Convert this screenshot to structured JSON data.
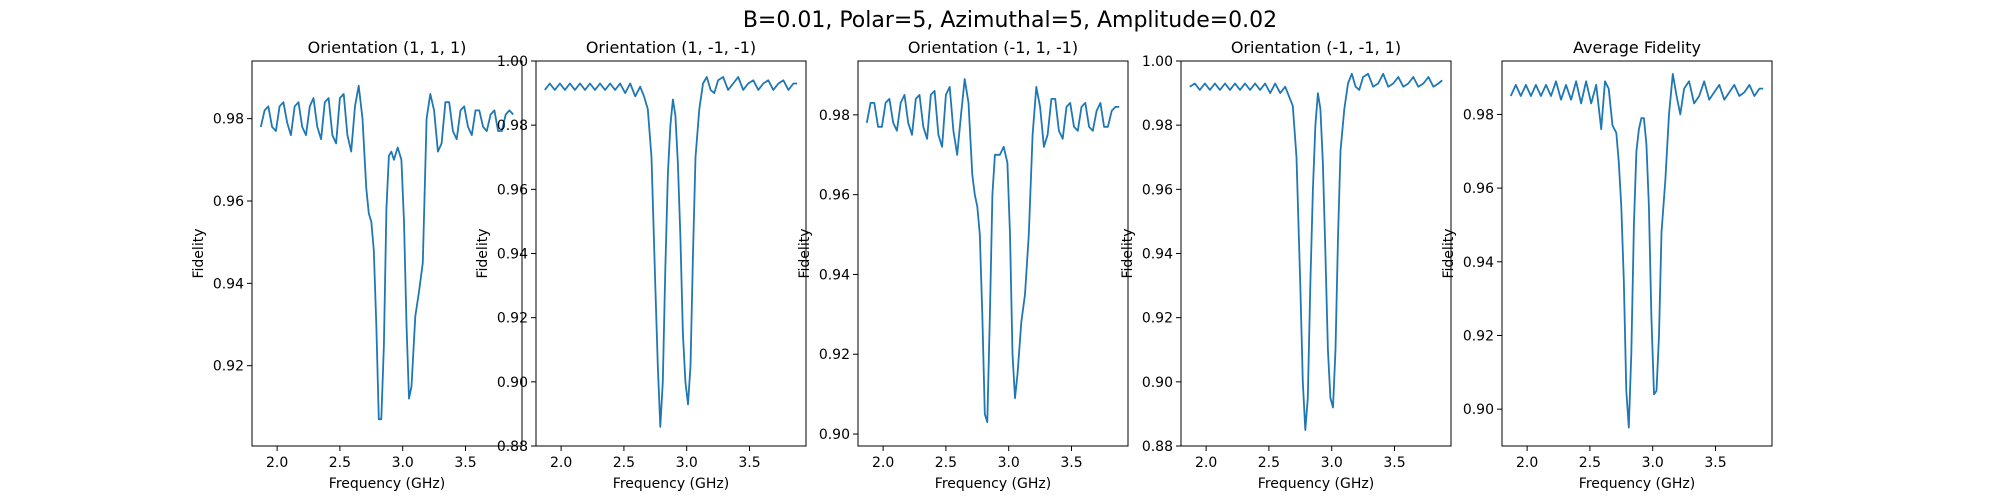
{
  "figure": {
    "title": "B=0.01, Polar=5, Azimuthal=5, Amplitude=0.02"
  },
  "colors": {
    "line": "#1f77b4",
    "axes": "#000000",
    "background": "#ffffff"
  },
  "chart_data": [
    {
      "type": "line",
      "title": "Orientation (1, 1, 1)",
      "xlabel": "Frequency (GHz)",
      "ylabel": "Fidelity",
      "xlim": [
        1.8,
        3.95
      ],
      "ylim": [
        0.9005,
        0.994
      ],
      "xticks": [
        2.0,
        2.5,
        3.0,
        3.5
      ],
      "xtick_labels": [
        "2.0",
        "2.5",
        "3.0",
        "3.5"
      ],
      "yticks": [
        0.92,
        0.94,
        0.96,
        0.98
      ],
      "ytick_labels": [
        "0.92",
        "0.94",
        "0.96",
        "0.98"
      ],
      "grid": false,
      "series": [
        {
          "x": [
            1.87,
            1.9,
            1.93,
            1.96,
            1.99,
            2.02,
            2.05,
            2.08,
            2.11,
            2.14,
            2.17,
            2.2,
            2.23,
            2.26,
            2.29,
            2.32,
            2.35,
            2.38,
            2.41,
            2.44,
            2.47,
            2.5,
            2.53,
            2.56,
            2.59,
            2.62,
            2.65,
            2.68,
            2.71,
            2.73,
            2.75,
            2.77,
            2.79,
            2.81,
            2.83,
            2.85,
            2.87,
            2.89,
            2.91,
            2.93,
            2.96,
            2.99,
            3.01,
            3.03,
            3.05,
            3.07,
            3.1,
            3.13,
            3.16,
            3.19,
            3.22,
            3.25,
            3.28,
            3.31,
            3.34,
            3.37,
            3.4,
            3.43,
            3.46,
            3.49,
            3.52,
            3.55,
            3.58,
            3.61,
            3.64,
            3.67,
            3.7,
            3.73,
            3.76,
            3.79,
            3.82,
            3.85,
            3.88
          ],
          "y": [
            0.978,
            0.982,
            0.983,
            0.978,
            0.977,
            0.983,
            0.984,
            0.979,
            0.976,
            0.983,
            0.984,
            0.978,
            0.976,
            0.983,
            0.985,
            0.978,
            0.975,
            0.984,
            0.985,
            0.976,
            0.974,
            0.985,
            0.986,
            0.976,
            0.972,
            0.983,
            0.988,
            0.98,
            0.963,
            0.957,
            0.955,
            0.948,
            0.93,
            0.907,
            0.907,
            0.925,
            0.958,
            0.971,
            0.972,
            0.97,
            0.973,
            0.97,
            0.955,
            0.93,
            0.912,
            0.915,
            0.932,
            0.938,
            0.945,
            0.98,
            0.986,
            0.982,
            0.972,
            0.974,
            0.984,
            0.984,
            0.977,
            0.975,
            0.982,
            0.983,
            0.978,
            0.976,
            0.982,
            0.982,
            0.978,
            0.977,
            0.981,
            0.982,
            0.977,
            0.977,
            0.981,
            0.982,
            0.981
          ]
        }
      ]
    },
    {
      "type": "line",
      "title": "Orientation (1, -1, -1)",
      "xlabel": "Frequency (GHz)",
      "ylabel": "Fidelity",
      "xlim": [
        1.8,
        3.95
      ],
      "ylim": [
        0.88,
        1.0
      ],
      "xticks": [
        2.0,
        2.5,
        3.0,
        3.5
      ],
      "xtick_labels": [
        "2.0",
        "2.5",
        "3.0",
        "3.5"
      ],
      "yticks": [
        0.88,
        0.9,
        0.92,
        0.94,
        0.96,
        0.98,
        1.0
      ],
      "ytick_labels": [
        "0.88",
        "0.90",
        "0.92",
        "0.94",
        "0.96",
        "0.98",
        "1.00"
      ],
      "grid": false,
      "series": [
        {
          "x": [
            1.87,
            1.91,
            1.95,
            1.99,
            2.03,
            2.07,
            2.11,
            2.15,
            2.19,
            2.23,
            2.27,
            2.31,
            2.35,
            2.39,
            2.43,
            2.47,
            2.51,
            2.55,
            2.59,
            2.63,
            2.66,
            2.69,
            2.72,
            2.75,
            2.77,
            2.79,
            2.81,
            2.83,
            2.85,
            2.87,
            2.89,
            2.91,
            2.93,
            2.95,
            2.97,
            2.99,
            3.01,
            3.03,
            3.05,
            3.07,
            3.1,
            3.13,
            3.16,
            3.19,
            3.22,
            3.25,
            3.29,
            3.33,
            3.37,
            3.41,
            3.45,
            3.49,
            3.53,
            3.57,
            3.61,
            3.65,
            3.69,
            3.73,
            3.77,
            3.81,
            3.85,
            3.88
          ],
          "y": [
            0.991,
            0.993,
            0.991,
            0.993,
            0.991,
            0.993,
            0.991,
            0.993,
            0.991,
            0.993,
            0.991,
            0.993,
            0.991,
            0.993,
            0.991,
            0.993,
            0.99,
            0.993,
            0.989,
            0.992,
            0.989,
            0.985,
            0.97,
            0.93,
            0.905,
            0.886,
            0.9,
            0.935,
            0.965,
            0.98,
            0.988,
            0.983,
            0.968,
            0.945,
            0.915,
            0.9,
            0.893,
            0.905,
            0.94,
            0.97,
            0.985,
            0.993,
            0.995,
            0.991,
            0.99,
            0.994,
            0.995,
            0.991,
            0.993,
            0.995,
            0.991,
            0.993,
            0.994,
            0.991,
            0.993,
            0.994,
            0.991,
            0.993,
            0.994,
            0.991,
            0.993,
            0.993
          ]
        }
      ]
    },
    {
      "type": "line",
      "title": "Orientation (-1, 1, -1)",
      "xlabel": "Frequency (GHz)",
      "ylabel": "Fidelity",
      "xlim": [
        1.8,
        3.95
      ],
      "ylim": [
        0.897,
        0.9935
      ],
      "xticks": [
        2.0,
        2.5,
        3.0,
        3.5
      ],
      "xtick_labels": [
        "2.0",
        "2.5",
        "3.0",
        "3.5"
      ],
      "yticks": [
        0.9,
        0.92,
        0.94,
        0.96,
        0.98
      ],
      "ytick_labels": [
        "0.90",
        "0.92",
        "0.94",
        "0.96",
        "0.98"
      ],
      "grid": false,
      "series": [
        {
          "x": [
            1.87,
            1.9,
            1.93,
            1.96,
            1.99,
            2.02,
            2.05,
            2.08,
            2.11,
            2.14,
            2.17,
            2.2,
            2.23,
            2.26,
            2.29,
            2.32,
            2.35,
            2.38,
            2.41,
            2.44,
            2.47,
            2.5,
            2.53,
            2.56,
            2.59,
            2.62,
            2.65,
            2.68,
            2.71,
            2.73,
            2.75,
            2.77,
            2.79,
            2.81,
            2.83,
            2.85,
            2.87,
            2.89,
            2.91,
            2.93,
            2.96,
            2.99,
            3.01,
            3.03,
            3.05,
            3.07,
            3.1,
            3.13,
            3.16,
            3.19,
            3.22,
            3.25,
            3.28,
            3.31,
            3.34,
            3.37,
            3.4,
            3.43,
            3.46,
            3.49,
            3.52,
            3.55,
            3.58,
            3.61,
            3.64,
            3.67,
            3.7,
            3.73,
            3.76,
            3.79,
            3.82,
            3.85,
            3.88
          ],
          "y": [
            0.978,
            0.983,
            0.983,
            0.977,
            0.977,
            0.983,
            0.984,
            0.978,
            0.976,
            0.983,
            0.985,
            0.978,
            0.975,
            0.984,
            0.985,
            0.977,
            0.974,
            0.985,
            0.986,
            0.975,
            0.972,
            0.985,
            0.987,
            0.976,
            0.97,
            0.98,
            0.989,
            0.983,
            0.965,
            0.96,
            0.957,
            0.95,
            0.93,
            0.905,
            0.903,
            0.93,
            0.96,
            0.97,
            0.97,
            0.97,
            0.972,
            0.968,
            0.95,
            0.92,
            0.909,
            0.915,
            0.928,
            0.935,
            0.95,
            0.975,
            0.987,
            0.982,
            0.972,
            0.975,
            0.984,
            0.984,
            0.976,
            0.974,
            0.982,
            0.983,
            0.977,
            0.976,
            0.982,
            0.983,
            0.977,
            0.976,
            0.981,
            0.983,
            0.977,
            0.977,
            0.981,
            0.982,
            0.982
          ]
        }
      ]
    },
    {
      "type": "line",
      "title": "Orientation (-1, -1, 1)",
      "xlabel": "Frequency (GHz)",
      "ylabel": "Fidelity",
      "xlim": [
        1.8,
        3.95
      ],
      "ylim": [
        0.88,
        1.0
      ],
      "xticks": [
        2.0,
        2.5,
        3.0,
        3.5
      ],
      "xtick_labels": [
        "2.0",
        "2.5",
        "3.0",
        "3.5"
      ],
      "yticks": [
        0.88,
        0.9,
        0.92,
        0.94,
        0.96,
        0.98,
        1.0
      ],
      "ytick_labels": [
        "0.88",
        "0.90",
        "0.92",
        "0.94",
        "0.96",
        "0.98",
        "1.00"
      ],
      "grid": false,
      "series": [
        {
          "x": [
            1.87,
            1.91,
            1.95,
            1.99,
            2.03,
            2.07,
            2.11,
            2.15,
            2.19,
            2.23,
            2.27,
            2.31,
            2.35,
            2.39,
            2.43,
            2.47,
            2.51,
            2.55,
            2.59,
            2.63,
            2.66,
            2.69,
            2.72,
            2.75,
            2.77,
            2.79,
            2.81,
            2.83,
            2.85,
            2.87,
            2.89,
            2.91,
            2.93,
            2.95,
            2.97,
            2.99,
            3.01,
            3.03,
            3.05,
            3.07,
            3.1,
            3.13,
            3.16,
            3.19,
            3.22,
            3.25,
            3.29,
            3.33,
            3.37,
            3.41,
            3.45,
            3.49,
            3.53,
            3.57,
            3.61,
            3.65,
            3.69,
            3.73,
            3.77,
            3.81,
            3.85,
            3.88
          ],
          "y": [
            0.992,
            0.993,
            0.991,
            0.993,
            0.991,
            0.993,
            0.991,
            0.993,
            0.991,
            0.993,
            0.991,
            0.993,
            0.991,
            0.993,
            0.991,
            0.993,
            0.99,
            0.993,
            0.99,
            0.992,
            0.989,
            0.986,
            0.97,
            0.93,
            0.9,
            0.885,
            0.895,
            0.93,
            0.96,
            0.98,
            0.99,
            0.985,
            0.968,
            0.94,
            0.91,
            0.895,
            0.892,
            0.91,
            0.945,
            0.972,
            0.985,
            0.993,
            0.996,
            0.992,
            0.991,
            0.995,
            0.996,
            0.992,
            0.993,
            0.996,
            0.992,
            0.993,
            0.995,
            0.992,
            0.993,
            0.995,
            0.992,
            0.993,
            0.995,
            0.992,
            0.993,
            0.994
          ]
        }
      ]
    },
    {
      "type": "line",
      "title": "Average Fidelity",
      "xlabel": "Frequency (GHz)",
      "ylabel": "Fidelity",
      "xlim": [
        1.8,
        3.95
      ],
      "ylim": [
        0.89,
        0.9945
      ],
      "xticks": [
        2.0,
        2.5,
        3.0,
        3.5
      ],
      "xtick_labels": [
        "2.0",
        "2.5",
        "3.0",
        "3.5"
      ],
      "yticks": [
        0.9,
        0.92,
        0.94,
        0.96,
        0.98
      ],
      "ytick_labels": [
        "0.90",
        "0.92",
        "0.94",
        "0.96",
        "0.98"
      ],
      "grid": false,
      "series": [
        {
          "x": [
            1.87,
            1.91,
            1.95,
            1.99,
            2.03,
            2.07,
            2.11,
            2.15,
            2.19,
            2.23,
            2.27,
            2.31,
            2.35,
            2.39,
            2.43,
            2.47,
            2.51,
            2.55,
            2.59,
            2.62,
            2.65,
            2.68,
            2.71,
            2.73,
            2.75,
            2.77,
            2.79,
            2.81,
            2.83,
            2.85,
            2.87,
            2.89,
            2.91,
            2.93,
            2.95,
            2.97,
            2.99,
            3.01,
            3.03,
            3.05,
            3.07,
            3.1,
            3.13,
            3.16,
            3.19,
            3.22,
            3.25,
            3.29,
            3.33,
            3.37,
            3.41,
            3.45,
            3.49,
            3.53,
            3.57,
            3.61,
            3.65,
            3.69,
            3.73,
            3.77,
            3.81,
            3.85,
            3.88
          ],
          "y": [
            0.985,
            0.988,
            0.985,
            0.988,
            0.985,
            0.988,
            0.985,
            0.988,
            0.985,
            0.989,
            0.984,
            0.988,
            0.984,
            0.989,
            0.983,
            0.989,
            0.983,
            0.988,
            0.976,
            0.989,
            0.987,
            0.977,
            0.975,
            0.967,
            0.955,
            0.935,
            0.905,
            0.895,
            0.915,
            0.95,
            0.97,
            0.976,
            0.979,
            0.979,
            0.972,
            0.955,
            0.925,
            0.904,
            0.905,
            0.92,
            0.948,
            0.962,
            0.98,
            0.991,
            0.985,
            0.98,
            0.987,
            0.989,
            0.983,
            0.985,
            0.989,
            0.984,
            0.986,
            0.988,
            0.984,
            0.986,
            0.988,
            0.985,
            0.986,
            0.988,
            0.985,
            0.987,
            0.987
          ]
        }
      ]
    }
  ]
}
